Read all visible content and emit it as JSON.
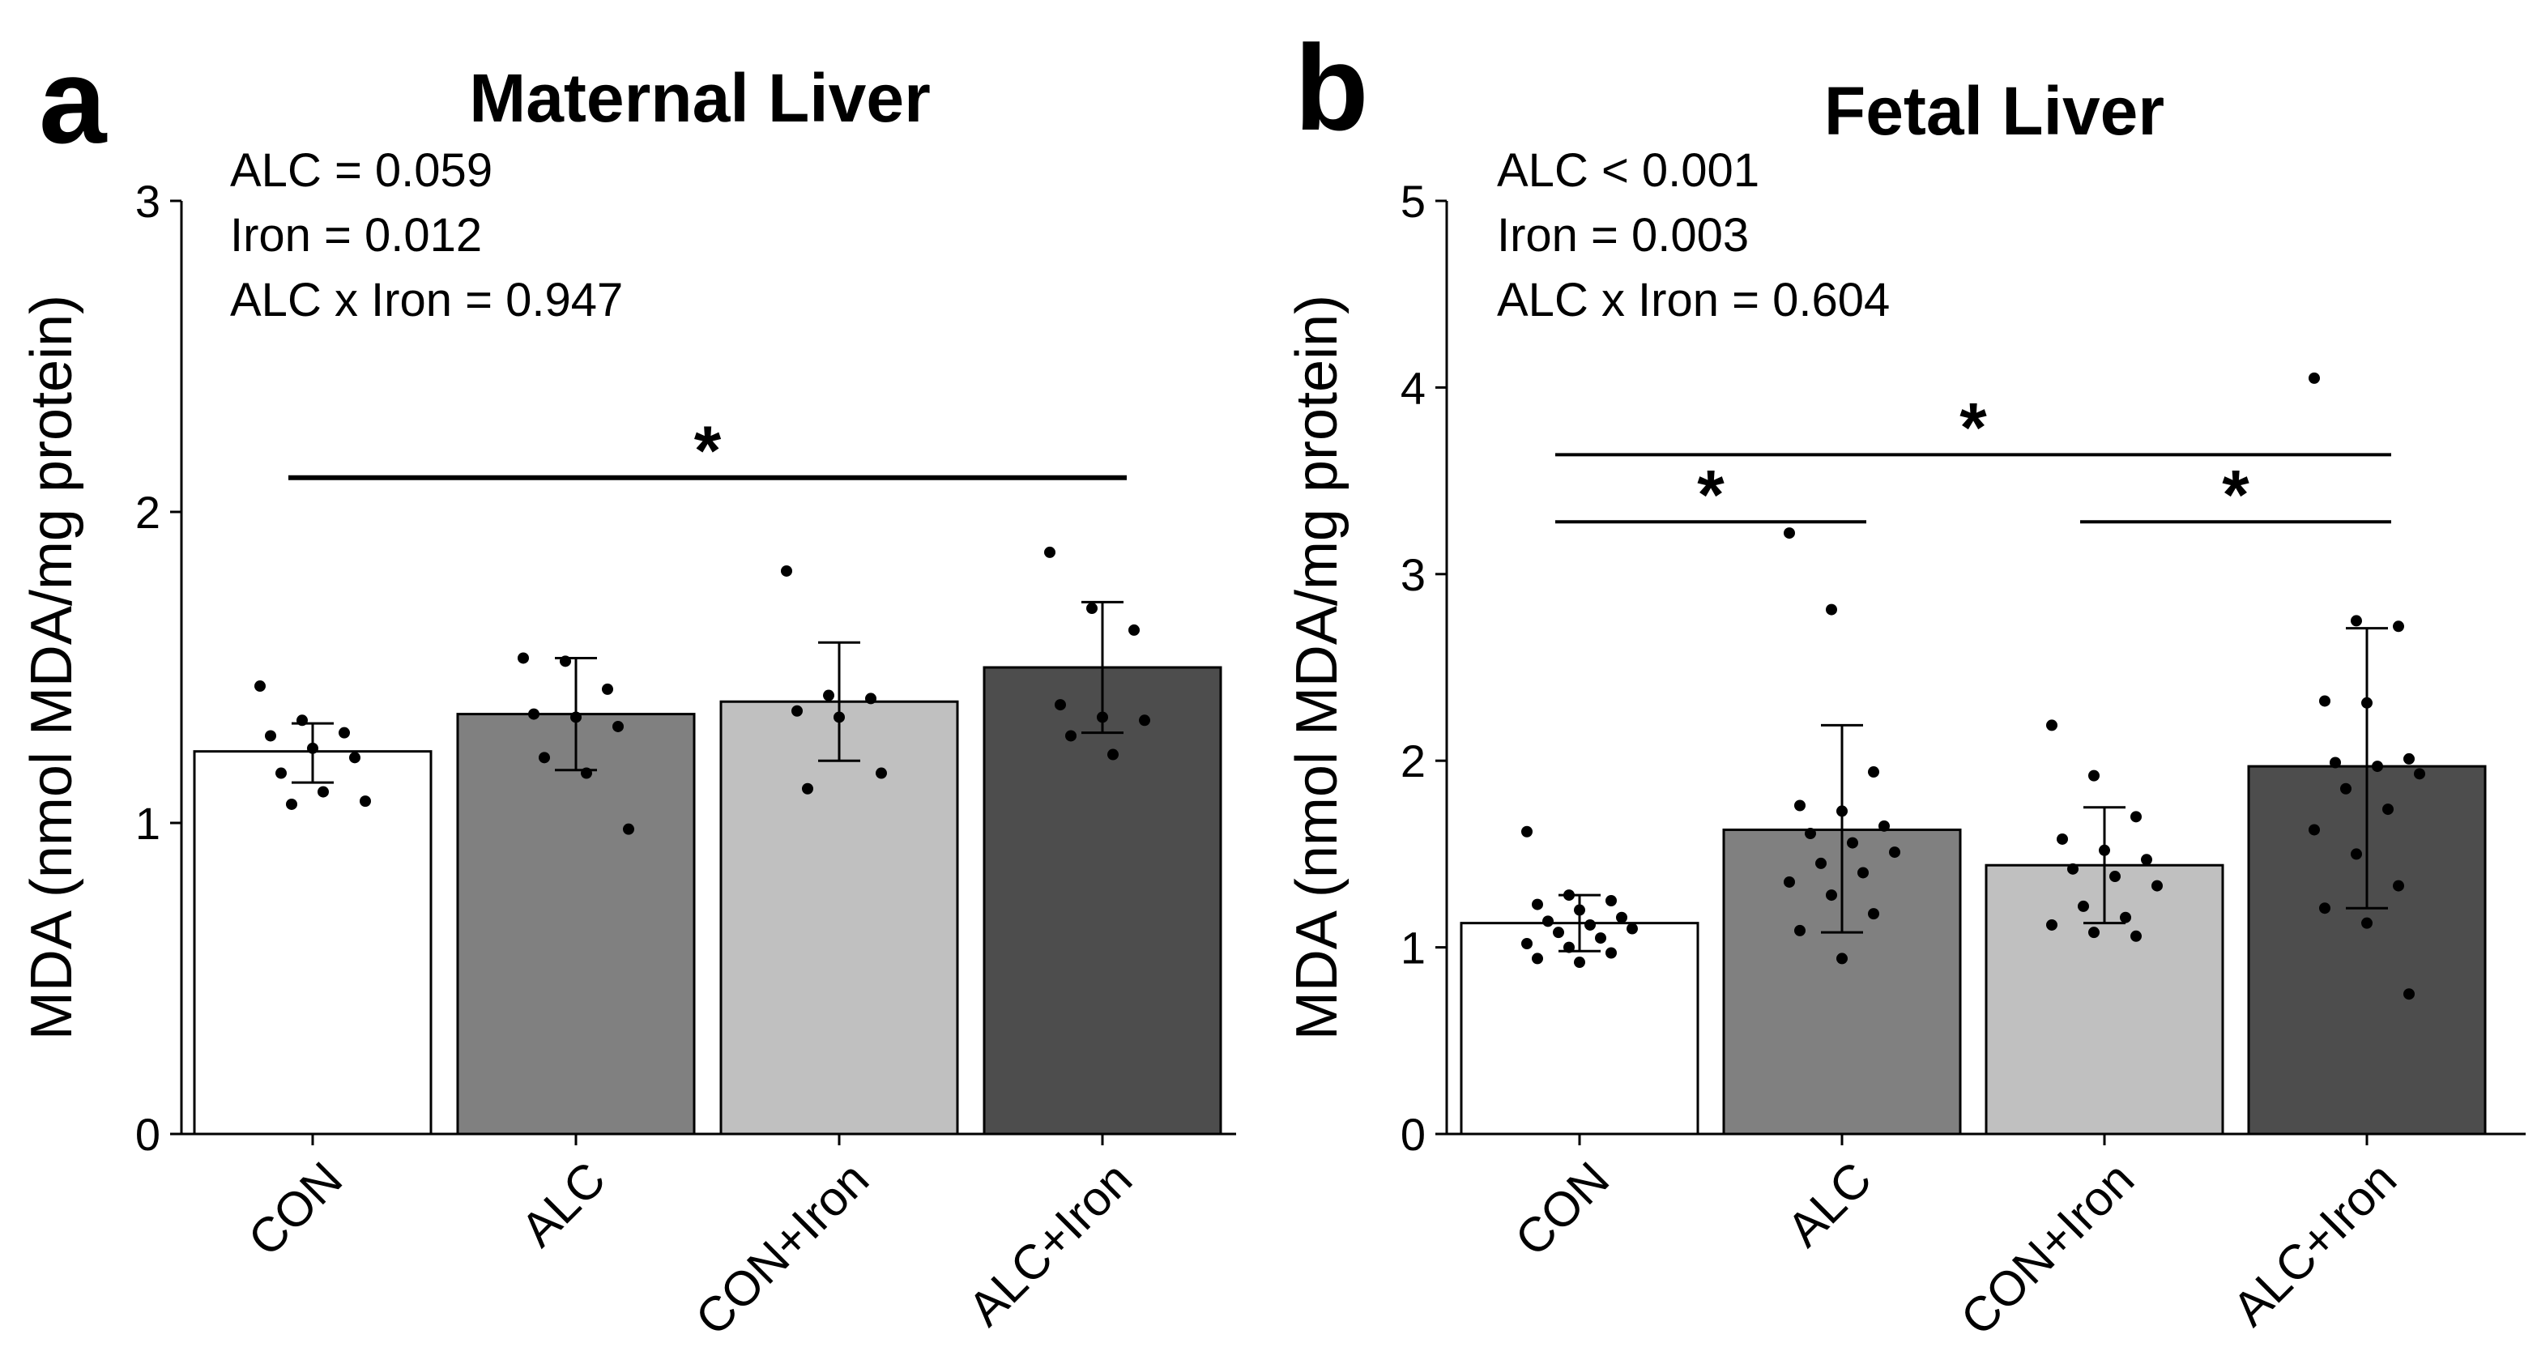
{
  "chart_data": [
    {
      "panel": "a",
      "type": "bar",
      "title": "Maternal Liver",
      "ylabel": "MDA (nmol MDA/mg protein)",
      "xlabel": "",
      "ylim": [
        0,
        3
      ],
      "yticks": [
        0,
        1,
        2,
        3
      ],
      "grid": false,
      "categories": [
        "CON",
        "ALC",
        "CON+Iron",
        "ALC+Iron"
      ],
      "values": [
        1.23,
        1.35,
        1.39,
        1.5
      ],
      "error_low": [
        1.13,
        1.17,
        1.2,
        1.29
      ],
      "error_high": [
        1.32,
        1.53,
        1.58,
        1.71
      ],
      "bar_colors": [
        "#ffffff",
        "#808080",
        "#c0c0c0",
        "#4d4d4d"
      ],
      "points": [
        [
          1.44,
          1.33,
          1.29,
          1.28,
          1.24,
          1.21,
          1.16,
          1.1,
          1.07,
          1.06
        ],
        [
          1.53,
          1.52,
          1.43,
          1.35,
          1.34,
          1.31,
          1.21,
          1.16,
          0.98
        ],
        [
          1.81,
          1.41,
          1.4,
          1.36,
          1.34,
          1.16,
          1.11
        ],
        [
          1.87,
          1.69,
          1.62,
          1.38,
          1.34,
          1.33,
          1.28,
          1.22
        ]
      ],
      "stats": [
        "ALC = 0.059",
        "Iron = 0.012",
        "ALC x Iron =  0.947"
      ],
      "significance": [
        {
          "from": 0,
          "to": 3,
          "y": 2.11,
          "label": "*"
        }
      ]
    },
    {
      "panel": "b",
      "type": "bar",
      "title": "Fetal Liver",
      "ylabel": "MDA (nmol MDA/mg protein)",
      "xlabel": "",
      "ylim": [
        0,
        5
      ],
      "yticks": [
        0,
        1,
        2,
        3,
        4,
        5
      ],
      "grid": false,
      "categories": [
        "CON",
        "ALC",
        "CON+Iron",
        "ALC+Iron"
      ],
      "values": [
        1.13,
        1.63,
        1.44,
        1.97
      ],
      "error_low": [
        0.98,
        1.08,
        1.13,
        1.21
      ],
      "error_high": [
        1.28,
        2.19,
        1.75,
        2.71
      ],
      "bar_colors": [
        "#ffffff",
        "#808080",
        "#c0c0c0",
        "#4d4d4d"
      ],
      "points": [
        [
          1.62,
          1.28,
          1.25,
          1.23,
          1.2,
          1.16,
          1.14,
          1.12,
          1.1,
          1.08,
          1.05,
          1.02,
          1.0,
          0.97,
          0.94,
          0.92
        ],
        [
          3.22,
          2.81,
          1.94,
          1.76,
          1.73,
          1.65,
          1.61,
          1.56,
          1.51,
          1.45,
          1.4,
          1.35,
          1.28,
          1.18,
          1.09,
          0.94
        ],
        [
          2.19,
          1.92,
          1.7,
          1.58,
          1.52,
          1.47,
          1.42,
          1.38,
          1.33,
          1.22,
          1.16,
          1.12,
          1.08,
          1.06
        ],
        [
          4.05,
          2.75,
          2.72,
          2.32,
          2.31,
          2.01,
          1.99,
          1.97,
          1.93,
          1.85,
          1.74,
          1.63,
          1.5,
          1.33,
          1.21,
          1.13,
          0.75
        ]
      ],
      "stats": [
        "ALC < 0.001",
        "Iron = 0.003",
        "ALC x Iron = 0.604"
      ],
      "significance": [
        {
          "from": 0,
          "to": 3,
          "y": 3.64,
          "label": "*"
        },
        {
          "from": 0,
          "to": 1,
          "y": 3.28,
          "label": "*"
        },
        {
          "from": 2,
          "to": 3,
          "y": 3.28,
          "label": "*"
        }
      ]
    }
  ]
}
